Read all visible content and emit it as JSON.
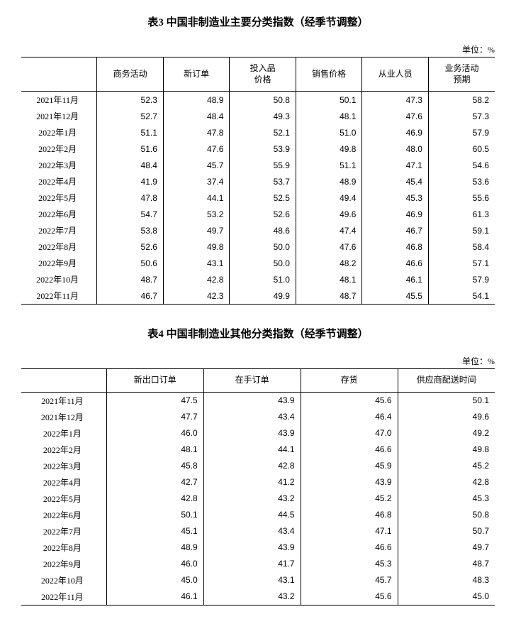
{
  "table3": {
    "title": "表3 中国非制造业主要分类指数（经季节调整）",
    "unit": "单位：%",
    "columns": [
      "",
      "商务活动",
      "新订单",
      "投入品\n价格",
      "销售价格",
      "从业人员",
      "业务活动\n预期"
    ],
    "rows": [
      [
        "2021年11月",
        "52.3",
        "48.9",
        "50.8",
        "50.1",
        "47.3",
        "58.2"
      ],
      [
        "2021年12月",
        "52.7",
        "48.4",
        "49.3",
        "48.1",
        "47.6",
        "57.3"
      ],
      [
        "2022年1月",
        "51.1",
        "47.8",
        "52.1",
        "51.0",
        "46.9",
        "57.9"
      ],
      [
        "2022年2月",
        "51.6",
        "47.6",
        "53.9",
        "49.8",
        "48.0",
        "60.5"
      ],
      [
        "2022年3月",
        "48.4",
        "45.7",
        "55.9",
        "51.1",
        "47.1",
        "54.6"
      ],
      [
        "2022年4月",
        "41.9",
        "37.4",
        "53.7",
        "48.9",
        "45.4",
        "53.6"
      ],
      [
        "2022年5月",
        "47.8",
        "44.1",
        "52.5",
        "49.4",
        "45.3",
        "55.6"
      ],
      [
        "2022年6月",
        "54.7",
        "53.2",
        "52.6",
        "49.6",
        "46.9",
        "61.3"
      ],
      [
        "2022年7月",
        "53.8",
        "49.7",
        "48.6",
        "47.4",
        "46.7",
        "59.1"
      ],
      [
        "2022年8月",
        "52.6",
        "49.8",
        "50.0",
        "47.6",
        "46.8",
        "58.4"
      ],
      [
        "2022年9月",
        "50.6",
        "43.1",
        "50.0",
        "48.2",
        "46.6",
        "57.1"
      ],
      [
        "2022年10月",
        "48.7",
        "42.8",
        "51.0",
        "48.1",
        "46.1",
        "57.9"
      ],
      [
        "2022年11月",
        "46.7",
        "42.3",
        "49.9",
        "48.7",
        "45.5",
        "54.1"
      ]
    ],
    "col_widths": [
      "16%",
      "14%",
      "14%",
      "14%",
      "14%",
      "14%",
      "14%"
    ]
  },
  "table4": {
    "title": "表4 中国非制造业其他分类指数（经季节调整）",
    "unit": "单位：%",
    "columns": [
      "",
      "新出口订单",
      "在手订单",
      "存货",
      "供应商配送时间"
    ],
    "rows": [
      [
        "2021年11月",
        "47.5",
        "43.9",
        "45.6",
        "50.1"
      ],
      [
        "2021年12月",
        "47.7",
        "43.4",
        "46.4",
        "49.6"
      ],
      [
        "2022年1月",
        "46.0",
        "43.9",
        "47.0",
        "49.2"
      ],
      [
        "2022年2月",
        "48.1",
        "44.1",
        "46.6",
        "49.8"
      ],
      [
        "2022年3月",
        "45.8",
        "42.8",
        "45.9",
        "45.2"
      ],
      [
        "2022年4月",
        "42.7",
        "41.2",
        "43.9",
        "42.8"
      ],
      [
        "2022年5月",
        "42.8",
        "43.2",
        "45.2",
        "45.3"
      ],
      [
        "2022年6月",
        "50.1",
        "44.5",
        "46.8",
        "50.8"
      ],
      [
        "2022年7月",
        "45.1",
        "43.4",
        "47.1",
        "50.7"
      ],
      [
        "2022年8月",
        "48.9",
        "43.9",
        "46.6",
        "49.7"
      ],
      [
        "2022年9月",
        "46.0",
        "41.7",
        "45.3",
        "48.7"
      ],
      [
        "2022年10月",
        "45.0",
        "43.1",
        "45.7",
        "48.3"
      ],
      [
        "2022年11月",
        "46.1",
        "43.2",
        "45.6",
        "45.0"
      ]
    ],
    "col_widths": [
      "18%",
      "20.5%",
      "20.5%",
      "20.5%",
      "20.5%"
    ]
  }
}
